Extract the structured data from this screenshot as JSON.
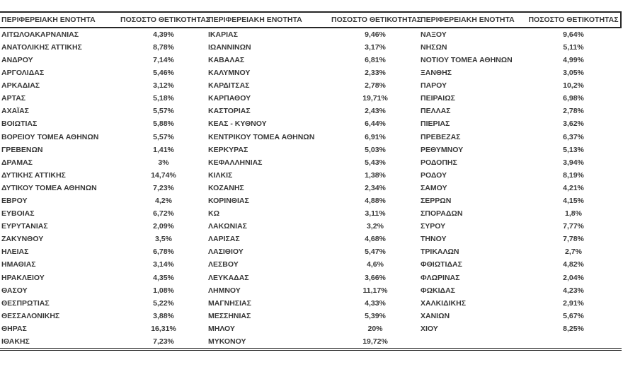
{
  "colors": {
    "text": "#383838",
    "line": "#262626",
    "background": "#ffffff"
  },
  "table": {
    "header": {
      "region_label": "ΠΕΡΙΦΕΡΕΙΑΚΗ ΕΝΟΤΗΤΑ",
      "rate_label": "ΠΟΣΟΣΤΟ ΘΕΤΙΚΟΤΗΤΑΣ"
    },
    "groups": [
      {
        "rows": [
          [
            "ΑΙΤΩΛΟΑΚΑΡΝΑΝΙΑΣ",
            "4,39%"
          ],
          [
            "ΑΝΑΤΟΛΙΚΗΣ ΑΤΤΙΚΗΣ",
            "8,78%"
          ],
          [
            "ΑΝΔΡΟΥ",
            "7,14%"
          ],
          [
            "ΑΡΓΟΛΙΔΑΣ",
            "5,46%"
          ],
          [
            "ΑΡΚΑΔΙΑΣ",
            "3,12%"
          ],
          [
            "ΑΡΤΑΣ",
            "5,18%"
          ],
          [
            "ΑΧΑΪΑΣ",
            "5,57%"
          ],
          [
            "ΒΟΙΩΤΙΑΣ",
            "5,88%"
          ],
          [
            "ΒΟΡΕΙΟΥ ΤΟΜΕΑ ΑΘΗΝΩΝ",
            "5,57%"
          ],
          [
            "ΓΡΕΒΕΝΩΝ",
            "1,41%"
          ],
          [
            "ΔΡΑΜΑΣ",
            "3%"
          ],
          [
            "ΔΥΤΙΚΗΣ ΑΤΤΙΚΗΣ",
            "14,74%"
          ],
          [
            "ΔΥΤΙΚΟΥ ΤΟΜΕΑ ΑΘΗΝΩΝ",
            "7,23%"
          ],
          [
            "ΕΒΡΟΥ",
            "4,2%"
          ],
          [
            "ΕΥΒΟΙΑΣ",
            "6,72%"
          ],
          [
            "ΕΥΡΥΤΑΝΙΑΣ",
            "2,09%"
          ],
          [
            "ΖΑΚΥΝΘΟΥ",
            "3,5%"
          ],
          [
            "ΗΛΕΙΑΣ",
            "6,78%"
          ],
          [
            "ΗΜΑΘΙΑΣ",
            "3,14%"
          ],
          [
            "ΗΡΑΚΛΕΙΟΥ",
            "4,35%"
          ],
          [
            "ΘΑΣΟΥ",
            "1,08%"
          ],
          [
            "ΘΕΣΠΡΩΤΙΑΣ",
            "5,22%"
          ],
          [
            "ΘΕΣΣΑΛΟΝΙΚΗΣ",
            "3,88%"
          ],
          [
            "ΘΗΡΑΣ",
            "16,31%"
          ],
          [
            "ΙΘΑΚΗΣ",
            "7,23%"
          ]
        ]
      },
      {
        "rows": [
          [
            "ΙΚΑΡΙΑΣ",
            "9,46%"
          ],
          [
            "ΙΩΑΝΝΙΝΩΝ",
            "3,17%"
          ],
          [
            "ΚΑΒΑΛΑΣ",
            "6,81%"
          ],
          [
            "ΚΑΛΥΜΝΟΥ",
            "2,33%"
          ],
          [
            "ΚΑΡΔΙΤΣΑΣ",
            "2,78%"
          ],
          [
            "ΚΑΡΠΑΘΟΥ",
            "19,71%"
          ],
          [
            "ΚΑΣΤΟΡΙΑΣ",
            "2,43%"
          ],
          [
            "ΚΕΑΣ - ΚΥΘΝΟΥ",
            "6,44%"
          ],
          [
            "ΚΕΝΤΡΙΚΟΥ ΤΟΜΕΑ ΑΘΗΝΩΝ",
            "6,91%"
          ],
          [
            "ΚΕΡΚΥΡΑΣ",
            "5,03%"
          ],
          [
            "ΚΕΦΑΛΛΗΝΙΑΣ",
            "5,43%"
          ],
          [
            "ΚΙΛΚΙΣ",
            "1,38%"
          ],
          [
            "ΚΟΖΑΝΗΣ",
            "2,34%"
          ],
          [
            "ΚΟΡΙΝΘΙΑΣ",
            "4,88%"
          ],
          [
            "ΚΩ",
            "3,11%"
          ],
          [
            "ΛΑΚΩΝΙΑΣ",
            "3,2%"
          ],
          [
            "ΛΑΡΙΣΑΣ",
            "4,68%"
          ],
          [
            "ΛΑΣΙΘΙΟΥ",
            "5,47%"
          ],
          [
            "ΛΕΣΒΟΥ",
            "4,6%"
          ],
          [
            "ΛΕΥΚΑΔΑΣ",
            "3,66%"
          ],
          [
            "ΛΗΜΝΟΥ",
            "11,17%"
          ],
          [
            "ΜΑΓΝΗΣΙΑΣ",
            "4,33%"
          ],
          [
            "ΜΕΣΣΗΝΙΑΣ",
            "5,39%"
          ],
          [
            "ΜΗΛΟΥ",
            "20%"
          ],
          [
            "ΜΥΚΟΝΟΥ",
            "19,72%"
          ]
        ]
      },
      {
        "rows": [
          [
            "ΝΑΞΟΥ",
            "9,64%"
          ],
          [
            "ΝΗΣΩΝ",
            "5,11%"
          ],
          [
            "ΝΟΤΙΟΥ ΤΟΜΕΑ ΑΘΗΝΩΝ",
            "4,99%"
          ],
          [
            "ΞΑΝΘΗΣ",
            "3,05%"
          ],
          [
            "ΠΑΡΟΥ",
            "10,2%"
          ],
          [
            "ΠΕΙΡΑΙΩΣ",
            "6,98%"
          ],
          [
            "ΠΕΛΛΑΣ",
            "2,78%"
          ],
          [
            "ΠΙΕΡΙΑΣ",
            "3,62%"
          ],
          [
            "ΠΡΕΒΕΖΑΣ",
            "6,37%"
          ],
          [
            "ΡΕΘΥΜΝΟΥ",
            "5,13%"
          ],
          [
            "ΡΟΔΟΠΗΣ",
            "3,94%"
          ],
          [
            "ΡΟΔΟΥ",
            "8,19%"
          ],
          [
            "ΣΑΜΟΥ",
            "4,21%"
          ],
          [
            "ΣΕΡΡΩΝ",
            "4,15%"
          ],
          [
            "ΣΠΟΡΑΔΩΝ",
            "1,8%"
          ],
          [
            "ΣΥΡΟΥ",
            "7,77%"
          ],
          [
            "ΤΗΝΟΥ",
            "7,78%"
          ],
          [
            "ΤΡΙΚΑΛΩΝ",
            "2,7%"
          ],
          [
            "ΦΘΙΩΤΙΔΑΣ",
            "4,82%"
          ],
          [
            "ΦΛΩΡΙΝΑΣ",
            "2,04%"
          ],
          [
            "ΦΩΚΙΔΑΣ",
            "4,23%"
          ],
          [
            "ΧΑΛΚΙΔΙΚΗΣ",
            "2,91%"
          ],
          [
            "ΧΑΝΙΩΝ",
            "5,67%"
          ],
          [
            "ΧΙΟΥ",
            "8,25%"
          ]
        ]
      }
    ]
  }
}
